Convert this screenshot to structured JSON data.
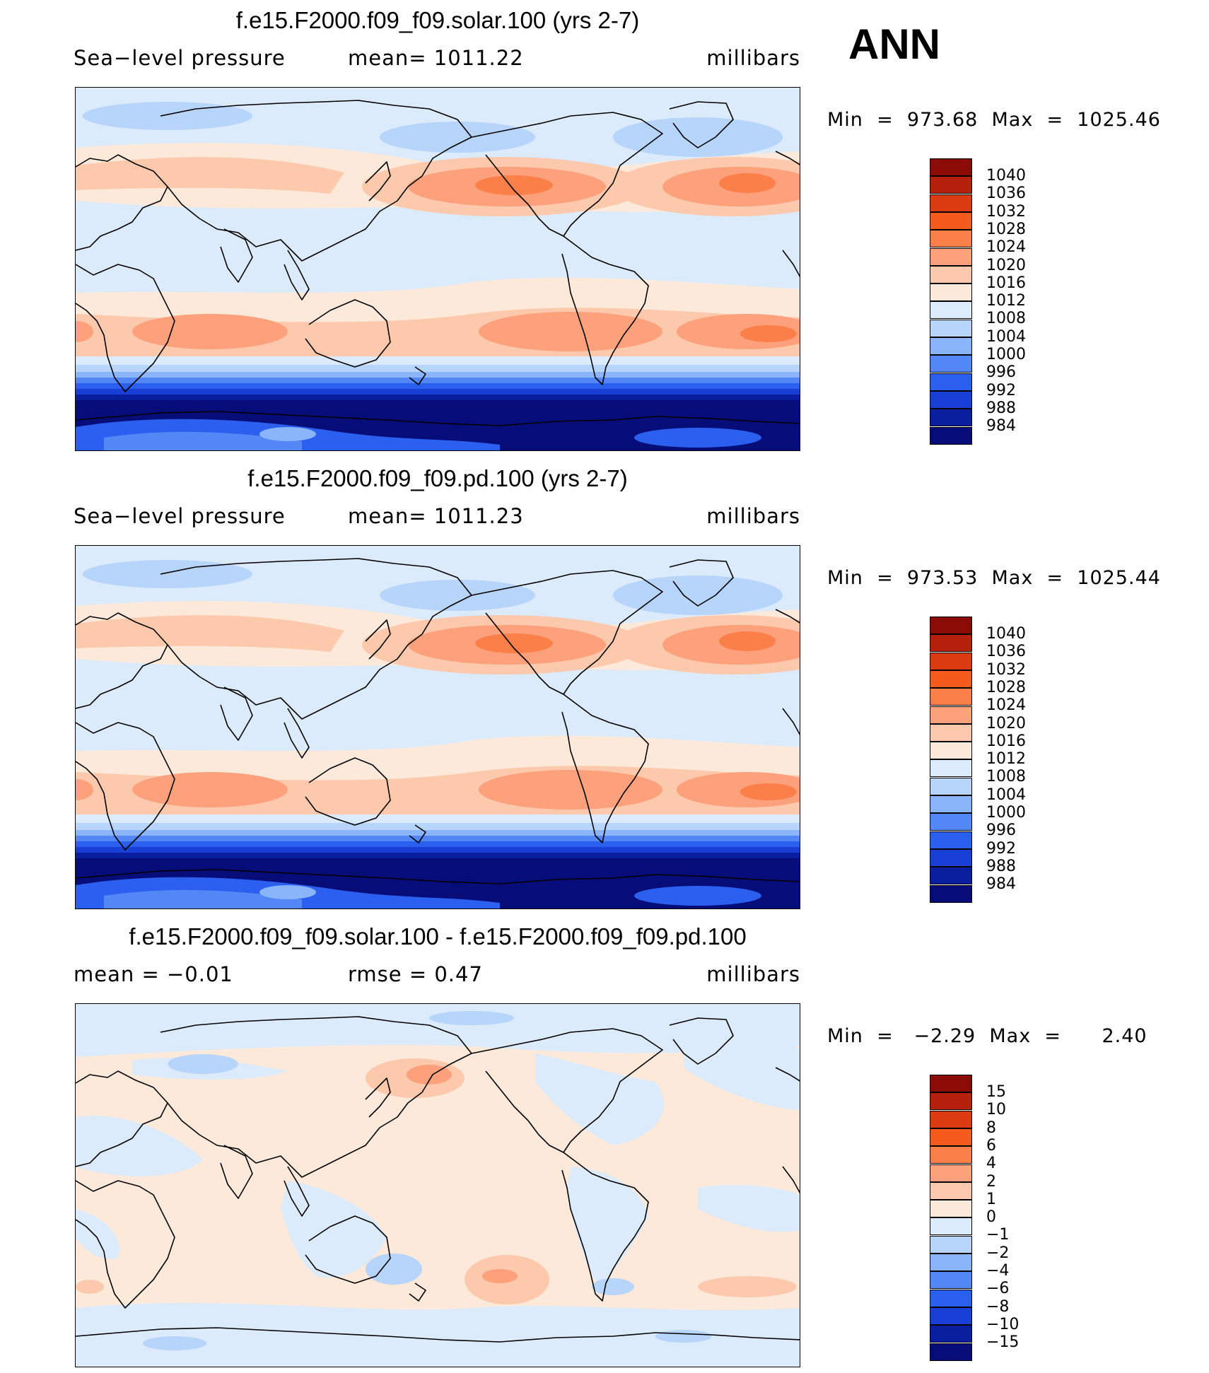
{
  "season": "ANN",
  "panels": [
    {
      "title": "f.e15.F2000.f09_f09.solar.100 (yrs 2-7)",
      "left_label": "Sea−level  pressure",
      "mid_label": "mean=  1011.22",
      "right_label": "millibars",
      "minmax": "Min  =  973.68  Max  =  1025.46",
      "colorbar": {
        "labels": [
          "1040",
          "1036",
          "1032",
          "1028",
          "1024",
          "1020",
          "1016",
          "1012",
          "1008",
          "1004",
          "1000",
          "996",
          "992",
          "988",
          "984"
        ],
        "colors": [
          "#8b0c07",
          "#b5200d",
          "#dc3a10",
          "#f45b1c",
          "#fb7f48",
          "#fda07c",
          "#fdc9ad",
          "#fde9da",
          "#dcebfb",
          "#b7d4fb",
          "#8bb5fb",
          "#5387f5",
          "#2a5ff0",
          "#1a3fd6",
          "#0a1fa0",
          "#060d78"
        ]
      },
      "field_type": "slp"
    },
    {
      "title": "f.e15.F2000.f09_f09.pd.100 (yrs 2-7)",
      "left_label": "Sea−level  pressure",
      "mid_label": "mean=  1011.23",
      "right_label": "millibars",
      "minmax": "Min  =  973.53  Max  =  1025.44",
      "colorbar": {
        "labels": [
          "1040",
          "1036",
          "1032",
          "1028",
          "1024",
          "1020",
          "1016",
          "1012",
          "1008",
          "1004",
          "1000",
          "996",
          "992",
          "988",
          "984"
        ],
        "colors": [
          "#8b0c07",
          "#b5200d",
          "#dc3a10",
          "#f45b1c",
          "#fb7f48",
          "#fda07c",
          "#fdc9ad",
          "#fde9da",
          "#dcebfb",
          "#b7d4fb",
          "#8bb5fb",
          "#5387f5",
          "#2a5ff0",
          "#1a3fd6",
          "#0a1fa0",
          "#060d78"
        ]
      },
      "field_type": "slp"
    },
    {
      "title": "f.e15.F2000.f09_f09.solar.100 - f.e15.F2000.f09_f09.pd.100",
      "left_label": "mean  =    −0.01",
      "mid_label": "rmse  =     0.47",
      "right_label": "millibars",
      "minmax": "Min  =   −2.29  Max  =      2.40",
      "colorbar": {
        "labels": [
          "15",
          "10",
          "8",
          "6",
          "4",
          "2",
          "1",
          "0",
          "−1",
          "−2",
          "−4",
          "−6",
          "−8",
          "−10",
          "−15"
        ],
        "colors": [
          "#8b0c07",
          "#b5200d",
          "#dc3a10",
          "#f45b1c",
          "#fb7f48",
          "#fda07c",
          "#fdc9ad",
          "#fde9da",
          "#dcebfb",
          "#b7d4fb",
          "#8bb5fb",
          "#5387f5",
          "#2a5ff0",
          "#1a3fd6",
          "#0a1fa0",
          "#060d78"
        ]
      },
      "field_type": "diff"
    }
  ]
}
